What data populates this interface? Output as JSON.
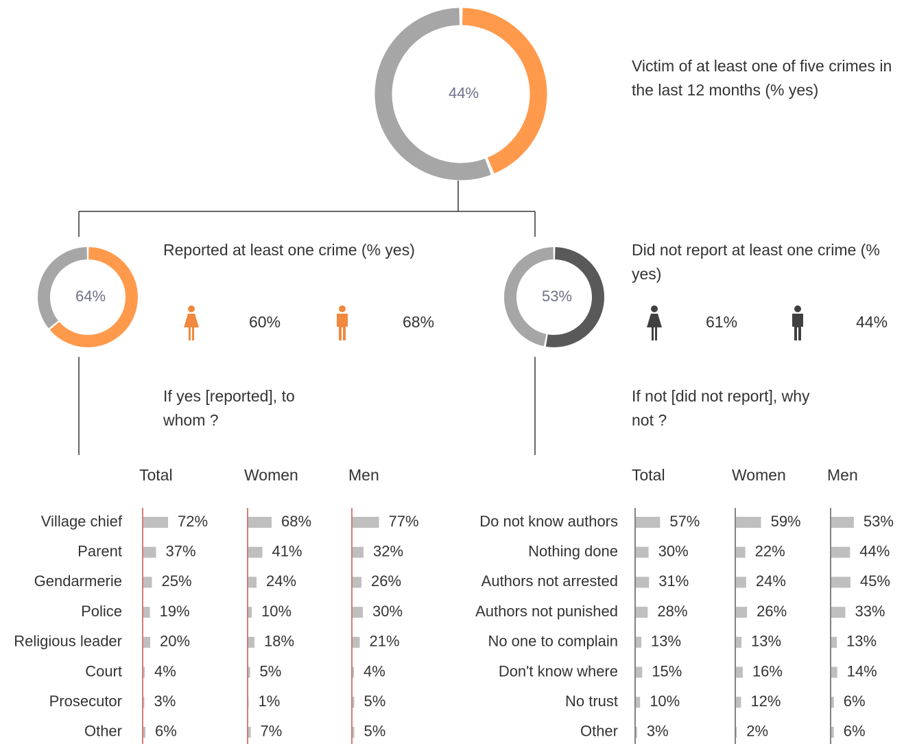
{
  "chart_data": [
    {
      "type": "donut",
      "title": "Victim of at least one of five crimes in the last 12 months (% yes)",
      "values": [
        44
      ],
      "value_labels": [
        "44%"
      ],
      "color": "#ff9a4d",
      "rest_color": "#a6a6a6"
    },
    {
      "type": "donut",
      "title": "Reported at least one crime (% yes)",
      "values": [
        64
      ],
      "value_labels": [
        "64%"
      ],
      "color": "#ff9a4d",
      "rest_color": "#a6a6a6",
      "icon_color": "#f0883e",
      "women": 60,
      "women_label": "60%",
      "men": 68,
      "men_label": "68%"
    },
    {
      "type": "donut",
      "title": "Did not report at least one crime (% yes)",
      "values": [
        53
      ],
      "value_labels": [
        "53%"
      ],
      "color": "#595959",
      "rest_color": "#a6a6a6",
      "icon_color": "#404040",
      "women": 61,
      "women_label": "61%",
      "men": 44,
      "men_label": "44%"
    },
    {
      "type": "bar",
      "subtitle": "If yes [reported], to whom ?",
      "categories": [
        "Village chief",
        "Parent",
        "Gendarmerie",
        "Police",
        "Religious leader",
        "Court",
        "Prosecutor",
        "Other"
      ],
      "color": "#bfbfbf",
      "axis_color": "#c0504d",
      "series": [
        {
          "name": "Total",
          "values": [
            72,
            37,
            25,
            19,
            20,
            4,
            3,
            6
          ],
          "value_labels": [
            "72%",
            "37%",
            "25%",
            "19%",
            "20%",
            "4%",
            "3%",
            "6%"
          ]
        },
        {
          "name": "Women",
          "values": [
            68,
            41,
            24,
            10,
            18,
            5,
            1,
            7
          ],
          "value_labels": [
            "68%",
            "41%",
            "24%",
            "10%",
            "18%",
            "5%",
            "1%",
            "7%"
          ]
        },
        {
          "name": "Men",
          "values": [
            77,
            32,
            26,
            30,
            21,
            4,
            5,
            5
          ],
          "value_labels": [
            "77%",
            "32%",
            "26%",
            "30%",
            "21%",
            "4%",
            "5%",
            "5%"
          ]
        }
      ]
    },
    {
      "type": "bar",
      "subtitle": "If not [did not report], why not ?",
      "categories": [
        "Do not know authors",
        "Nothing done",
        "Authors not arrested",
        "Authors not punished",
        "No one to complain",
        "Don't know where",
        "No trust",
        "Other"
      ],
      "color": "#bfbfbf",
      "axis_color": "#595959",
      "series": [
        {
          "name": "Total",
          "values": [
            57,
            30,
            31,
            28,
            13,
            15,
            10,
            3
          ],
          "value_labels": [
            "57%",
            "30%",
            "31%",
            "28%",
            "13%",
            "15%",
            "10%",
            "3%"
          ]
        },
        {
          "name": "Women",
          "values": [
            59,
            22,
            24,
            26,
            13,
            16,
            12,
            2
          ],
          "value_labels": [
            "59%",
            "22%",
            "24%",
            "26%",
            "13%",
            "16%",
            "12%",
            "2%"
          ]
        },
        {
          "name": "Men",
          "values": [
            53,
            44,
            45,
            33,
            13,
            14,
            6,
            6
          ],
          "value_labels": [
            "53%",
            "44%",
            "45%",
            "33%",
            "13%",
            "14%",
            "6%",
            "6%"
          ]
        }
      ]
    }
  ]
}
